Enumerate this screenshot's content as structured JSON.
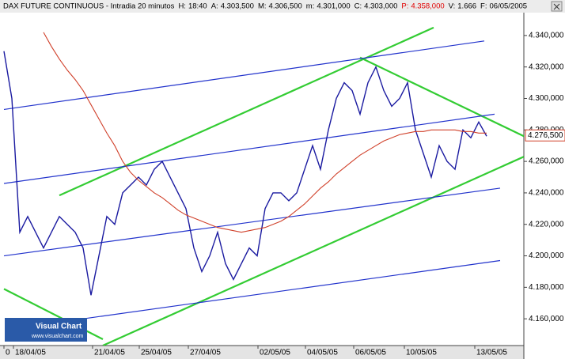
{
  "chart_data": {
    "type": "line",
    "title": "DAX FUTURE CONTINUOUS - Intradia 20 minutos",
    "header_fields": [
      {
        "label": "H:",
        "text": "18:40"
      },
      {
        "label": "A:",
        "text": "4.303,500"
      },
      {
        "label": "M:",
        "text": "4.306,500"
      },
      {
        "label": "m:",
        "text": "4.301,000"
      },
      {
        "label": "C:",
        "text": "4.303,000"
      },
      {
        "label": "P:",
        "text": "4.358,000",
        "color": "#e00000"
      },
      {
        "label": "V:",
        "text": "1.666"
      },
      {
        "label": "F:",
        "text": "06/05/2005"
      }
    ],
    "logo": {
      "name": "Visual Chart",
      "url": "www.visualchart.com"
    },
    "x": [
      0,
      1,
      2,
      3,
      4,
      5,
      6,
      7,
      8,
      9,
      10,
      11,
      12,
      13,
      14,
      15,
      16,
      17,
      18,
      19,
      20,
      21,
      22,
      23,
      24,
      25,
      26,
      27,
      28,
      29,
      30,
      31,
      32,
      33,
      34,
      35,
      36,
      37,
      38,
      39,
      40,
      41,
      42,
      43,
      44,
      45,
      46,
      47,
      48,
      49,
      50,
      51,
      52,
      53,
      54,
      55,
      56,
      57,
      58,
      59,
      60,
      61
    ],
    "series": [
      {
        "color": "#1a1aa0",
        "values": [
          4330,
          4300,
          4215,
          4225,
          4215,
          4205,
          4215,
          4225,
          4220,
          4215,
          4205,
          4175,
          4200,
          4225,
          4220,
          4240,
          4245,
          4250,
          4245,
          4255,
          4260,
          4250,
          4240,
          4230,
          4205,
          4190,
          4200,
          4215,
          4195,
          4185,
          4195,
          4205,
          4200,
          4230,
          4240,
          4240,
          4235,
          4240,
          4255,
          4270,
          4255,
          4280,
          4300,
          4310,
          4305,
          4290,
          4310,
          4320,
          4305,
          4295,
          4300,
          4310,
          4280,
          4265,
          4250,
          4270,
          4260,
          4255,
          4280,
          4275,
          4285,
          4276
        ]
      },
      {
        "color": "#d0402a",
        "values": [
          null,
          null,
          null,
          null,
          null,
          4342,
          4333,
          4325,
          4318,
          4312,
          4305,
          4296,
          4287,
          4278,
          4270,
          4260,
          4253,
          4248,
          4244,
          4240,
          4237,
          4233,
          4229,
          4226,
          4224,
          4222,
          4220,
          4218,
          4217,
          4216,
          4215,
          4216,
          4217,
          4218,
          4220,
          4222,
          4225,
          4229,
          4233,
          4238,
          4243,
          4247,
          4252,
          4256,
          4260,
          4264,
          4267,
          4270,
          4273,
          4275,
          4277,
          4278,
          4279,
          4279,
          4280,
          4280,
          4280,
          4280,
          4279,
          4279,
          4278,
          4278
        ]
      }
    ],
    "trendlines": [
      {
        "color": "#33cc33",
        "x": [
          7,
          54.3
        ],
        "y": [
          4238.4,
          4345
        ]
      },
      {
        "color": "#33cc33",
        "x": [
          12.5,
          65.7
        ],
        "y": [
          4143,
          4263
        ]
      },
      {
        "color": "#33cc33",
        "x": [
          45,
          65.7
        ],
        "y": [
          4326,
          4276
        ]
      },
      {
        "color": "#33cc33",
        "x": [
          0,
          12.5
        ],
        "y": [
          4179,
          4147
        ]
      },
      {
        "color": "#2233cc",
        "x": [
          0,
          60.7
        ],
        "y": [
          4293,
          4336.5
        ]
      },
      {
        "color": "#2233cc",
        "x": [
          0,
          62
        ],
        "y": [
          4246,
          4290
        ]
      },
      {
        "color": "#2233cc",
        "x": [
          0,
          62.7
        ],
        "y": [
          4200,
          4243
        ]
      },
      {
        "color": "#2233cc",
        "x": [
          10,
          62.7
        ],
        "y": [
          4160,
          4197
        ]
      }
    ],
    "last_label": {
      "value": 4276.5,
      "label": "4.276,500"
    },
    "xlim": [
      -0.5,
      65.7
    ],
    "ylim": [
      4143,
      4354
    ],
    "xticks": [
      {
        "value": 0,
        "label": "0"
      },
      {
        "value": 1.2,
        "label": "18/04/05"
      },
      {
        "value": 11.2,
        "label": "21/04/05"
      },
      {
        "value": 17.1,
        "label": "25/04/05"
      },
      {
        "value": 23.3,
        "label": "27/04/05"
      },
      {
        "value": 32.1,
        "label": "02/05/05"
      },
      {
        "value": 38.1,
        "label": "04/05/05"
      },
      {
        "value": 44.2,
        "label": "06/05/05"
      },
      {
        "value": 50.6,
        "label": "10/05/05"
      },
      {
        "value": 59.5,
        "label": "13/05/05"
      }
    ],
    "yticks": [
      {
        "value": 4160,
        "label": "4.160,000"
      },
      {
        "value": 4180,
        "label": "4.180,000"
      },
      {
        "value": 4200,
        "label": "4.200,000"
      },
      {
        "value": 4220,
        "label": "4.220,000"
      },
      {
        "value": 4240,
        "label": "4.240,000"
      },
      {
        "value": 4260,
        "label": "4.260,000"
      },
      {
        "value": 4280,
        "label": "4.280,000"
      },
      {
        "value": 4300,
        "label": "4.300,000"
      },
      {
        "value": 4320,
        "label": "4.320,000"
      },
      {
        "value": 4340,
        "label": "4.340,000"
      }
    ]
  }
}
